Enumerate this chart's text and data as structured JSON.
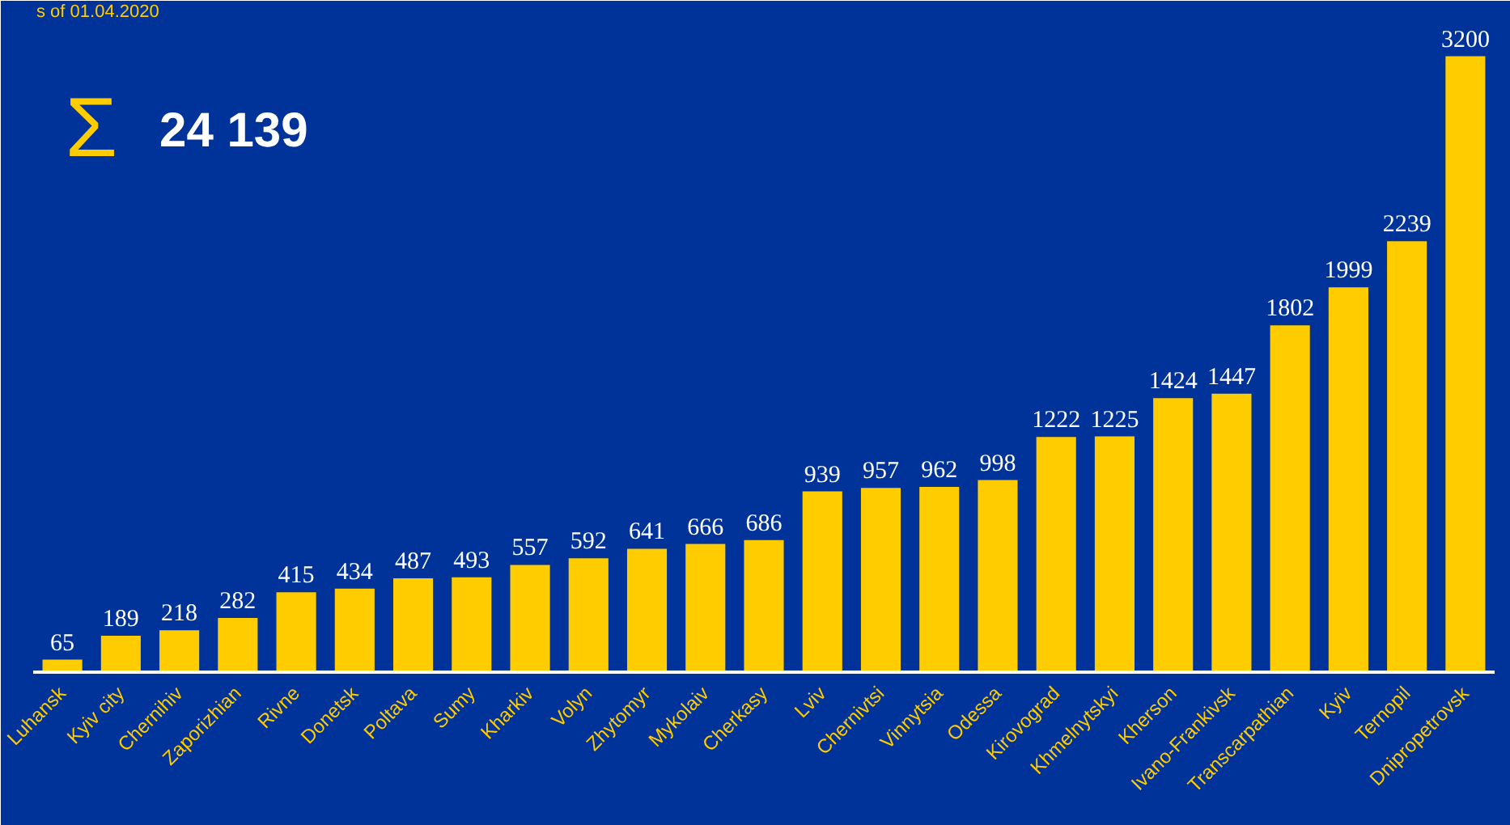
{
  "chart_data": {
    "type": "bar",
    "categories": [
      "Luhansk",
      "Kyiv city",
      "Chernihiv",
      "Zaporizhian",
      "Rivne",
      "Donetsk",
      "Poltava",
      "Sumy",
      "Kharkiv",
      "Volyn",
      "Zhytomyr",
      "Mykolaiv",
      "Cherkasy",
      "Lviv",
      "Chernivtsi",
      "Vinnytsia",
      "Odessa",
      "Kirovograd",
      "Khmelnytskyi",
      "Kherson",
      "Ivano-Frankivsk",
      "Transcarpathian",
      "Kyiv",
      "Ternopil",
      "Dnipropetrovsk"
    ],
    "values": [
      65,
      189,
      218,
      282,
      415,
      434,
      487,
      493,
      557,
      592,
      641,
      666,
      686,
      939,
      957,
      962,
      998,
      1222,
      1225,
      1424,
      1447,
      1802,
      1999,
      2239,
      3200
    ],
    "color": "#ffcc00",
    "data_labels": true,
    "grid": false,
    "annotations": [
      "s of 01.04.2020",
      "Σ",
      "24 139"
    ]
  }
}
